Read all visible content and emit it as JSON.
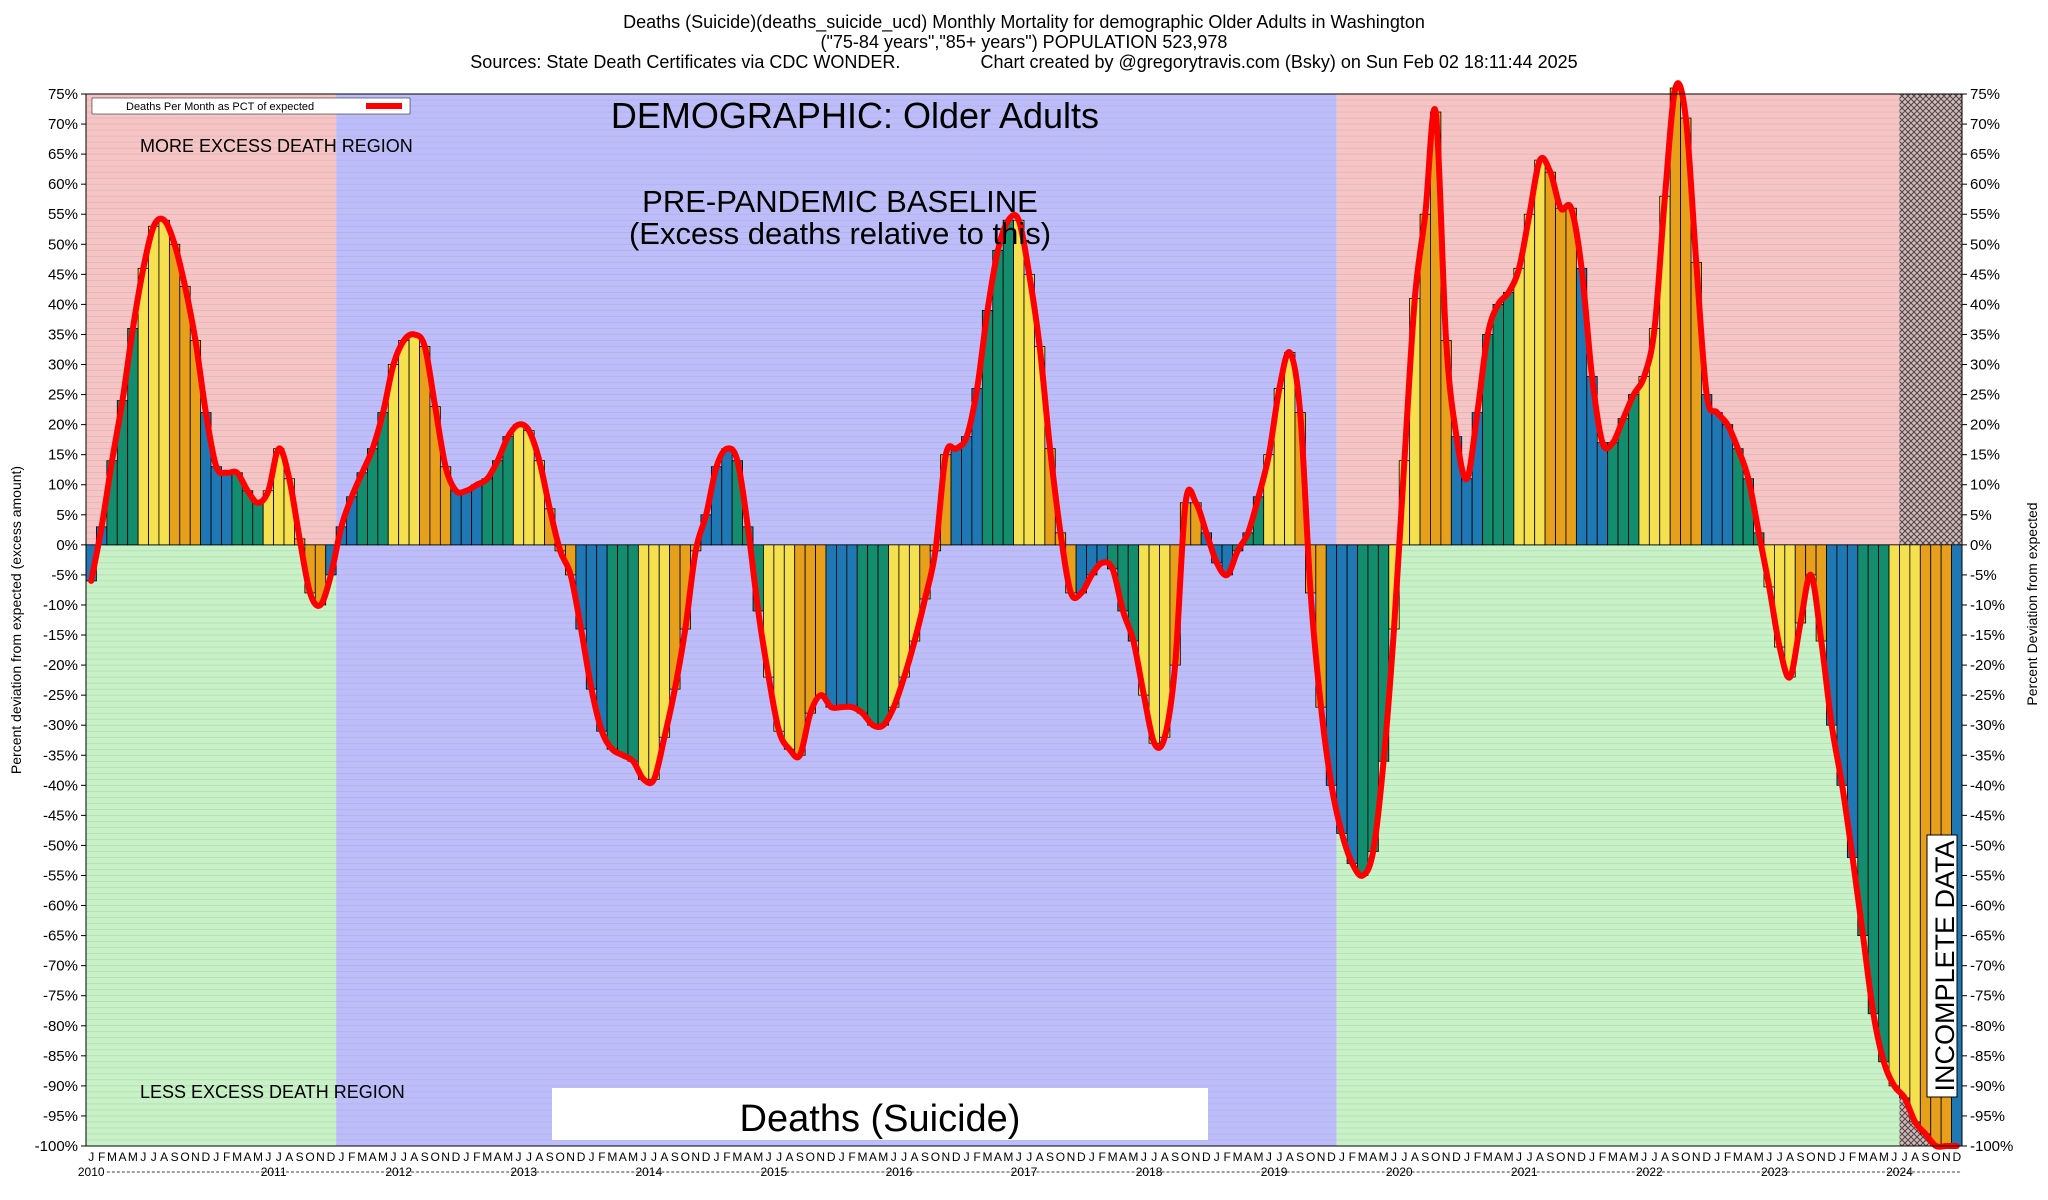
{
  "header": {
    "title_line1": "Deaths (Suicide)(deaths_suicide_ucd) Monthly Mortality for demographic Older Adults in Washington",
    "title_line2": "(\"75-84 years\",\"85+ years\") POPULATION 523,978",
    "title_line3": "Sources: State Death Certificates via CDC WONDER.                Chart created by @gregorytravis.com (Bsky) on Sun Feb 02 18:11:44 2025"
  },
  "chart_data": {
    "type": "bar",
    "title": "Deaths (Suicide)(deaths_suicide_ucd) Monthly Mortality for demographic Older Adults in Washington",
    "ylabel_left": "Percent deviation from expected (excess amount)",
    "ylabel_right": "Percent Deviation from expected",
    "ylim": [
      -100,
      75
    ],
    "y_tick_step": 5,
    "legend": {
      "label": "Deaths Per Month as PCT of expected",
      "position": "top-left",
      "line_color": "#ff0000"
    },
    "annotations": {
      "demographic": "DEMOGRAPHIC: Older Adults",
      "baseline_line1": "PRE-PANDEMIC BASELINE",
      "baseline_line2": "(Excess deaths relative to this)",
      "more_region": "MORE EXCESS DEATH REGION",
      "less_region": "LESS EXCESS DEATH REGION",
      "incomplete": "INCOMPLETE DATA",
      "cause_box": "Deaths (Suicide)"
    },
    "start_year": 2010,
    "month_letters": [
      "J",
      "F",
      "M",
      "A",
      "M",
      "J",
      "J",
      "A",
      "S",
      "O",
      "N",
      "D"
    ],
    "years": [
      "2010",
      "2011",
      "2012",
      "2013",
      "2014",
      "2015",
      "2016",
      "2017",
      "2018",
      "2019",
      "2020",
      "2021",
      "2022",
      "2023",
      "2024"
    ],
    "baseline_period": [
      "2012-01",
      "2019-12"
    ],
    "incomplete_period": [
      "2024-07",
      "2024-12"
    ],
    "season_colors": {
      "winter": "#1f77b4",
      "spring": "#138d6e",
      "summer": "#f5e050",
      "fall": "#e6a01c"
    },
    "region_colors": {
      "excess": "#f6c4c4",
      "deficit": "#c6f2c6",
      "baseline": "#bdbdfb",
      "incomplete": "#d8b8b8",
      "line": "#ff0000"
    },
    "values": [
      -6,
      3,
      14,
      24,
      36,
      46,
      53,
      54,
      50,
      43,
      34,
      22,
      13,
      12,
      12,
      9,
      7,
      9,
      16,
      11,
      1,
      -8,
      -10,
      -5,
      3,
      8,
      12,
      16,
      22,
      30,
      34,
      35,
      33,
      23,
      13,
      9,
      9,
      10,
      11,
      14,
      18,
      20,
      19,
      14,
      6,
      -1,
      -5,
      -14,
      -24,
      -31,
      -34,
      -35,
      -36,
      -39,
      -39,
      -32,
      -24,
      -14,
      -1,
      5,
      13,
      16,
      14,
      3,
      -11,
      -22,
      -31,
      -34,
      -35,
      -28,
      -25,
      -27,
      -27,
      -27,
      -28,
      -30,
      -30,
      -27,
      -22,
      -16,
      -9,
      -1,
      15,
      16,
      18,
      26,
      39,
      49,
      54,
      54,
      45,
      33,
      16,
      2,
      -8,
      -8,
      -5,
      -3,
      -4,
      -11,
      -16,
      -25,
      -33,
      -32,
      -20,
      7,
      7,
      2,
      -3,
      -5,
      -1,
      2,
      8,
      15,
      26,
      32,
      22,
      -8,
      -27,
      -40,
      -48,
      -53,
      -55,
      -51,
      -36,
      -14,
      14,
      41,
      55,
      72,
      34,
      18,
      11,
      22,
      35,
      40,
      42,
      46,
      55,
      64,
      62,
      56,
      56,
      46,
      28,
      17,
      17,
      21,
      25,
      28,
      36,
      58,
      76,
      71,
      47,
      25,
      22,
      20,
      16,
      11,
      2,
      -7,
      -17,
      -22,
      -13,
      -5,
      -16,
      -30,
      -40,
      -52,
      -65,
      -78,
      -86,
      -90,
      -92,
      -96,
      -98,
      -100,
      -100,
      -100
    ]
  }
}
